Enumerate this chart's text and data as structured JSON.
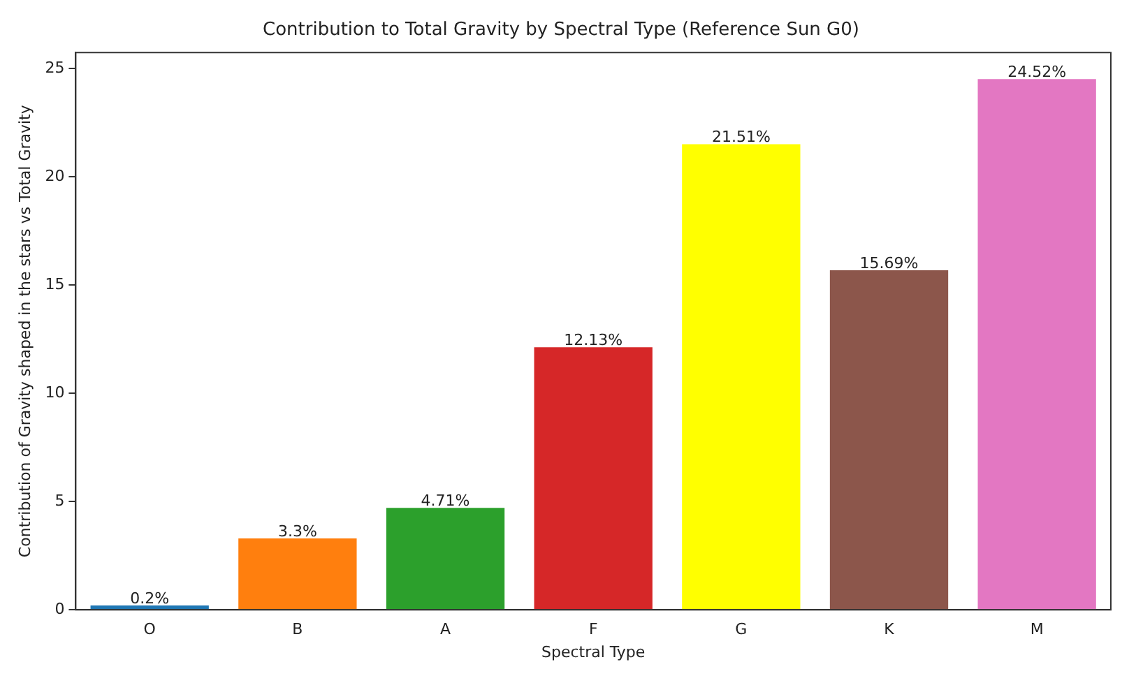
{
  "chart_data": {
    "type": "bar",
    "title": "Contribution to Total Gravity by Spectral Type (Reference Sun G0)",
    "xlabel": "Spectral Type",
    "ylabel": "Contribution of Gravity shaped in the stars vs Total Gravity",
    "categories": [
      "O",
      "B",
      "A",
      "F",
      "G",
      "K",
      "M"
    ],
    "values": [
      0.2,
      3.3,
      4.71,
      12.13,
      21.51,
      15.69,
      24.52
    ],
    "colors": [
      "#1f77b4",
      "#ff7f0e",
      "#2ca02c",
      "#d62728",
      "#ffff00",
      "#8c564b",
      "#e377c2"
    ],
    "value_labels": [
      "0.2%",
      "3.3%",
      "4.71%",
      "12.13%",
      "21.51%",
      "15.69%",
      "24.52%"
    ],
    "ylim": [
      0,
      25.75
    ],
    "yticks": [
      0,
      5,
      10,
      15,
      20,
      25
    ],
    "grid": false,
    "legend": false
  }
}
